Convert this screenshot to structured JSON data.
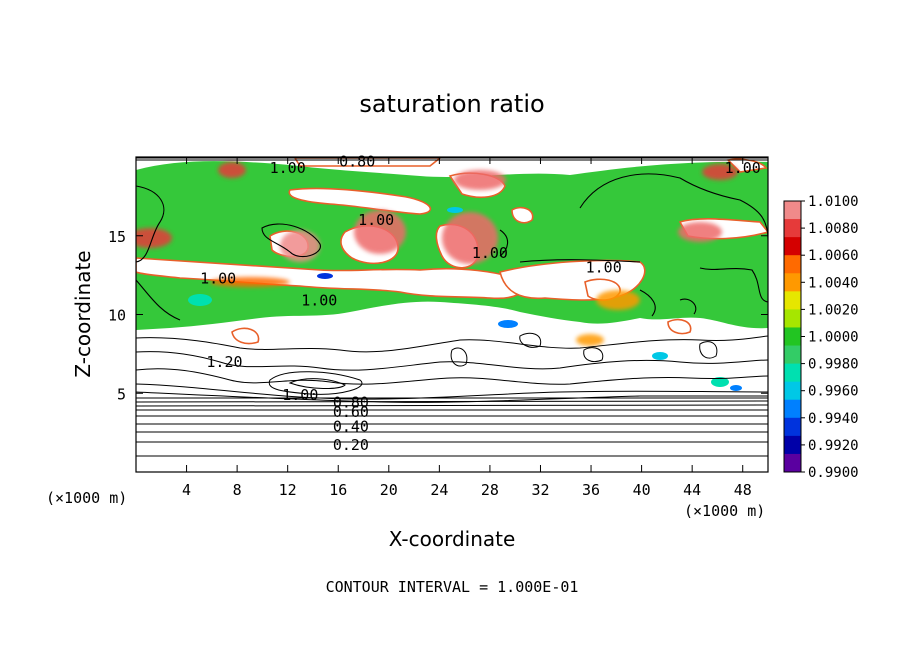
{
  "chart_data": {
    "type": "heatmap",
    "title": "saturation ratio",
    "xlabel": "X-coordinate",
    "ylabel": "Z-coordinate",
    "x_unit": "(×1000 m)",
    "y_unit": "(×1000 m)",
    "xlim": [
      0,
      50
    ],
    "ylim": [
      0,
      20
    ],
    "x_ticks": [
      4,
      8,
      12,
      16,
      20,
      24,
      28,
      32,
      36,
      40,
      44,
      48
    ],
    "y_ticks": [
      5,
      10,
      15
    ],
    "colorbar": {
      "ticks": [
        "1.0100",
        "1.0080",
        "1.0060",
        "1.0040",
        "1.0020",
        "1.0000",
        "0.9980",
        "0.9960",
        "0.9940",
        "0.9920",
        "0.9900"
      ],
      "colors": [
        "#f08a8a",
        "#e63a3a",
        "#d40000",
        "#ff6a00",
        "#ff9900",
        "#e6e600",
        "#a6e600",
        "#22c522",
        "#33cc66",
        "#00e0b0",
        "#00c8e6",
        "#0080ff",
        "#0033dd",
        "#0000a8",
        "#5a00a0"
      ]
    },
    "contour_labels": [
      {
        "text": "1.00",
        "x": 12,
        "z": 19.3
      },
      {
        "text": "0.80",
        "x": 17.5,
        "z": 19.7
      },
      {
        "text": "1.00",
        "x": 48,
        "z": 19.3
      },
      {
        "text": "1.00",
        "x": 19,
        "z": 16.0
      },
      {
        "text": "1.00",
        "x": 28,
        "z": 13.9
      },
      {
        "text": "1.00",
        "x": 37,
        "z": 13.0
      },
      {
        "text": "1.00",
        "x": 6.5,
        "z": 12.3
      },
      {
        "text": "1.00",
        "x": 14.5,
        "z": 10.9
      },
      {
        "text": "1.20",
        "x": 7,
        "z": 7.0
      },
      {
        "text": "1.00",
        "x": 13,
        "z": 4.9
      },
      {
        "text": "0.80",
        "x": 17,
        "z": 4.4
      },
      {
        "text": "0.60",
        "x": 17,
        "z": 3.8
      },
      {
        "text": "0.40",
        "x": 17,
        "z": 2.9
      },
      {
        "text": "0.20",
        "x": 17,
        "z": 1.7
      }
    ]
  },
  "footer": "CONTOUR INTERVAL = 1.000E-01"
}
